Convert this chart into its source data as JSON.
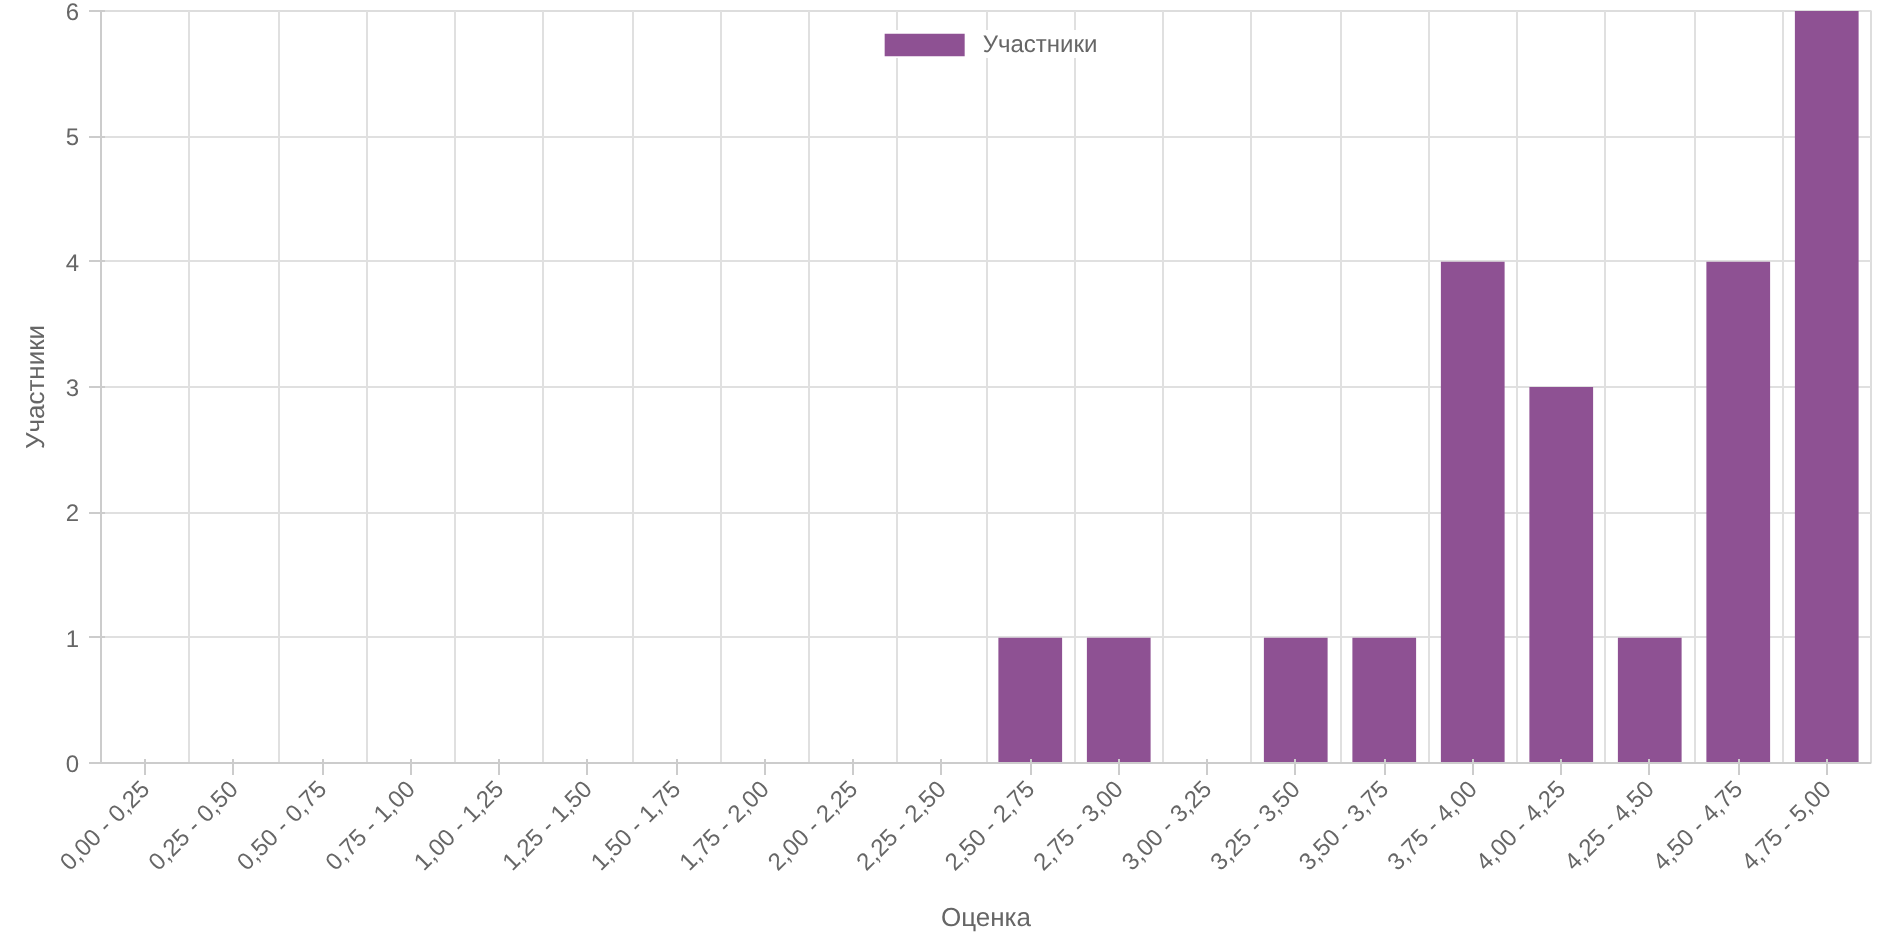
{
  "chart_data": {
    "type": "bar",
    "xlabel": "Оценка",
    "ylabel": "Участники",
    "categories": [
      "0,00 - 0,25",
      "0,25 - 0,50",
      "0,50 - 0,75",
      "0,75 - 1,00",
      "1,00 - 1,25",
      "1,25 - 1,50",
      "1,50 - 1,75",
      "1,75 - 2,00",
      "2,00 - 2,25",
      "2,25 - 2,50",
      "2,50 - 2,75",
      "2,75 - 3,00",
      "3,00 - 3,25",
      "3,25 - 3,50",
      "3,50 - 3,75",
      "3,75 - 4,00",
      "4,00 - 4,25",
      "4,25 - 4,50",
      "4,50 - 4,75",
      "4,75 - 5,00"
    ],
    "series": [
      {
        "name": "Участники",
        "color": "#8e5193",
        "values": [
          0,
          0,
          0,
          0,
          0,
          0,
          0,
          0,
          0,
          0,
          1,
          1,
          0,
          1,
          1,
          4,
          3,
          1,
          4,
          6
        ]
      }
    ],
    "ylim": [
      0,
      6
    ],
    "yticks": [
      0,
      1,
      2,
      3,
      4,
      5,
      6
    ],
    "grid": true,
    "legend": "top"
  }
}
